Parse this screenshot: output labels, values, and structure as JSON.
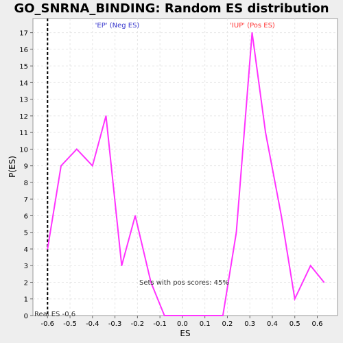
{
  "chart_data": {
    "type": "line",
    "title": "GO_SNRNA_BINDING: Random ES distribution",
    "xlabel": "ES",
    "ylabel": "P(ES)",
    "xlim": [
      -0.665,
      0.69
    ],
    "ylim": [
      0,
      17.85
    ],
    "x_ticks": [
      -0.6,
      -0.5,
      -0.4,
      -0.3,
      -0.2,
      -0.1,
      0.0,
      0.1,
      0.2,
      0.3,
      0.4,
      0.5,
      0.6
    ],
    "x_tick_labels": [
      "-0.6",
      "-0.5",
      "-0.4",
      "-0.3",
      "-0.2",
      "-0.1",
      "0.0",
      "0.1",
      "0.2",
      "0.3",
      "0.4",
      "0.5",
      "0.6"
    ],
    "y_ticks": [
      0,
      1,
      2,
      3,
      4,
      5,
      6,
      7,
      8,
      9,
      10,
      11,
      12,
      13,
      14,
      15,
      16,
      17
    ],
    "grid": true,
    "series": [
      {
        "color": "#ff33ff",
        "x": [
          -0.6,
          -0.54,
          -0.47,
          -0.4,
          -0.34,
          -0.27,
          -0.21,
          -0.14,
          -0.08,
          -0.01,
          0.05,
          0.12,
          0.18,
          0.24,
          0.31,
          0.37,
          0.44,
          0.5,
          0.57,
          0.63
        ],
        "y": [
          4,
          9,
          10,
          9,
          12,
          3,
          6,
          2,
          0,
          0,
          0,
          0,
          0,
          5,
          17,
          11,
          6,
          1,
          3,
          2
        ]
      }
    ],
    "real_es": {
      "value": -0.6,
      "label": "Real ES -0.6"
    },
    "annotations": {
      "neg_label": "'EP' (Neg ES)",
      "neg_color": "#3333cc",
      "pos_label": "'IUP' (Pos ES)",
      "pos_color": "#ff3333",
      "pos_scores": "Sets with pos scores: 45%"
    }
  }
}
